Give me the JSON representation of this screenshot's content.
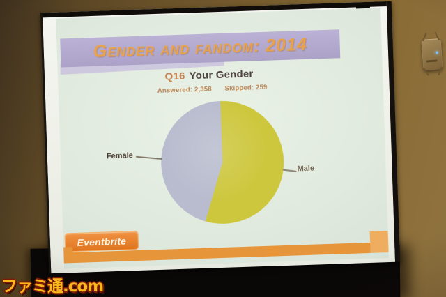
{
  "photo": {
    "watermark_text": "ファミ通.com"
  },
  "slide": {
    "banner": {
      "title": "Gender and fandom: 2014"
    },
    "question": {
      "number": "Q16",
      "text": "Your Gender"
    },
    "stats": {
      "answered": "Answered: 2,358",
      "skipped": "Skipped: 259"
    },
    "footer": {
      "logo_text": "Eventbrite"
    }
  },
  "chart_data": {
    "type": "pie",
    "title": "Q16 Your Gender",
    "answered": 2358,
    "skipped": 259,
    "legend_position": "none",
    "labels_style": "outside leader lines",
    "slices": [
      {
        "label": "Male",
        "percent": 55,
        "color": "#cdc73e"
      },
      {
        "label": "Female",
        "percent": 45,
        "color": "#b8bcce"
      }
    ]
  },
  "colors": {
    "banner_purple": "#b3a9ce",
    "banner_title_orange": "#e9a24b",
    "pie_male_yellow": "#cdc73e",
    "pie_female_lavender": "#b8bcce",
    "footer_band_orange": "#e6953b",
    "logo_orange": "#e8802e",
    "slide_background": "#e1eade",
    "watermark_yellow": "#f6b81b"
  }
}
